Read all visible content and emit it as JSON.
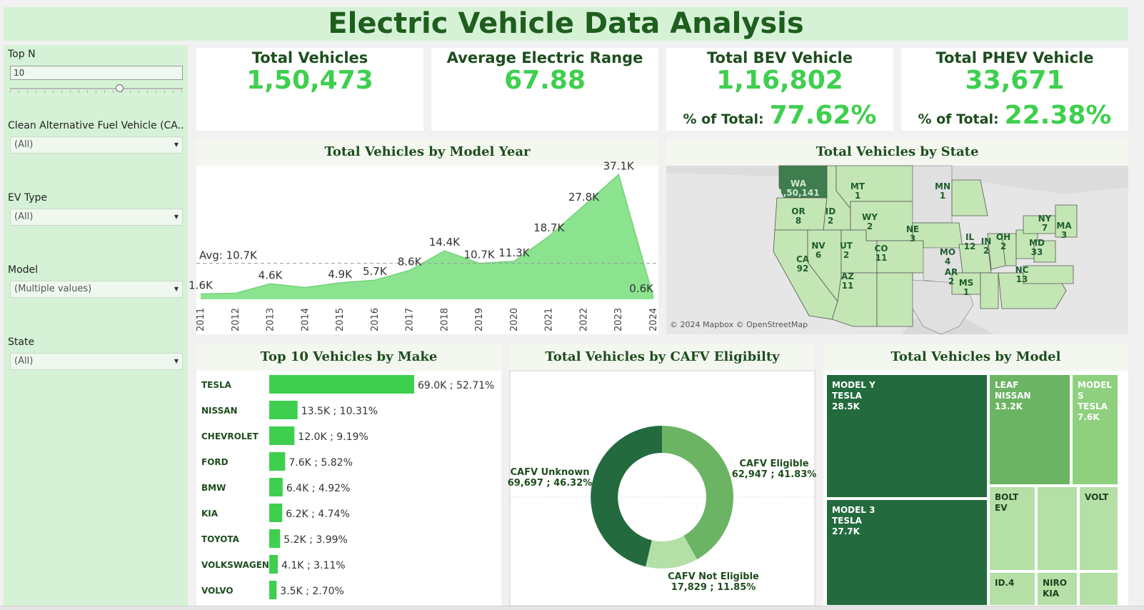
{
  "title": "Electric Vehicle Data Analysis",
  "colors": {
    "accent": "#3fcf4f",
    "dark": "#1e4d1e",
    "dark_green": "#236b3e",
    "mid_green": "#6bb463",
    "light_green": "#b4e0a7"
  },
  "filters": {
    "topn": {
      "label": "Top N",
      "value": "10",
      "level": 0.64
    },
    "cafv": {
      "label": "Clean Alternative Fuel Vehicle (CA..",
      "value": "(All)"
    },
    "evtype": {
      "label": "EV Type",
      "value": "(All)"
    },
    "model": {
      "label": "Model",
      "value": "(Multiple values)"
    },
    "state": {
      "label": "State",
      "value": "(All)"
    }
  },
  "kpis": [
    {
      "title": "Total Vehicles",
      "value": "1,50,473"
    },
    {
      "title": "Average Electric Range",
      "value": "67.88"
    },
    {
      "title": "Total BEV Vehicle",
      "value": "1,16,802",
      "pct_label": "% of Total:",
      "pct": "77.62%"
    },
    {
      "title": "Total PHEV Vehicle",
      "value": "33,671",
      "pct_label": "% of Total:",
      "pct": "22.38%"
    }
  ],
  "year_chart": {
    "title": "Total Vehicles by Model Year",
    "avg_label": "Avg: 10.7K"
  },
  "map": {
    "title": "Total Vehicles by State",
    "attribution": "© 2024 Mapbox © OpenStreetMap",
    "states": [
      {
        "code": "WA",
        "value": "1,50,141"
      },
      {
        "code": "MT",
        "value": "1"
      },
      {
        "code": "MN",
        "value": "1"
      },
      {
        "code": "OR",
        "value": "8"
      },
      {
        "code": "ID",
        "value": "2"
      },
      {
        "code": "WY",
        "value": "2"
      },
      {
        "code": "NE",
        "value": "3"
      },
      {
        "code": "NY",
        "value": "7"
      },
      {
        "code": "MA",
        "value": "3"
      },
      {
        "code": "NV",
        "value": "6"
      },
      {
        "code": "UT",
        "value": "2"
      },
      {
        "code": "CO",
        "value": "11"
      },
      {
        "code": "IL",
        "value": "12"
      },
      {
        "code": "IN",
        "value": "2"
      },
      {
        "code": "OH",
        "value": "2"
      },
      {
        "code": "MD",
        "value": "33"
      },
      {
        "code": "CA",
        "value": "92"
      },
      {
        "code": "MO",
        "value": "4"
      },
      {
        "code": "AZ",
        "value": "11"
      },
      {
        "code": "AR",
        "value": "2"
      },
      {
        "code": "MS",
        "value": "1"
      },
      {
        "code": "NC",
        "value": "13"
      }
    ]
  },
  "make_chart": {
    "title": "Top 10 Vehicles by Make"
  },
  "cafv_chart": {
    "title": "Total Vehicles by CAFV Eligibilty"
  },
  "model_chart": {
    "title": "Total Vehicles by Model",
    "tiles": [
      {
        "name": "MODEL Y",
        "make": "TESLA",
        "value": "28.5K"
      },
      {
        "name": "LEAF",
        "make": "NISSAN",
        "value": "13.2K"
      },
      {
        "name": "MODEL S",
        "make": "TESLA",
        "value": "7.6K"
      },
      {
        "name": "MODEL 3",
        "make": "TESLA",
        "value": "27.7K"
      },
      {
        "name": "BOLT EV",
        "make": "",
        "value": ""
      },
      {
        "name": "VOLT",
        "make": "",
        "value": ""
      },
      {
        "name": "ID.4",
        "make": "",
        "value": ""
      },
      {
        "name": "NIRO",
        "make": "KIA",
        "value": ""
      }
    ]
  },
  "chart_data": [
    {
      "type": "area",
      "title": "Total Vehicles by Model Year",
      "x": [
        "2011",
        "2012",
        "2013",
        "2014",
        "2015",
        "2016",
        "2017",
        "2018",
        "2019",
        "2020",
        "2021",
        "2022",
        "2023",
        "2024"
      ],
      "values": [
        1.6,
        1.8,
        4.6,
        3.5,
        4.9,
        5.7,
        8.6,
        14.4,
        10.7,
        11.3,
        18.7,
        27.8,
        37.1,
        0.6
      ],
      "data_labels": [
        "1.6K",
        "",
        "4.6K",
        "",
        "4.9K",
        "5.7K",
        "8.6K",
        "14.4K",
        "10.7K",
        "11.3K",
        "18.7K",
        "27.8K",
        "37.1K",
        "0.6K"
      ],
      "reference_line": {
        "label": "Avg: 10.7K",
        "value": 10.7
      },
      "ylim": [
        0,
        38
      ],
      "grid": false
    },
    {
      "type": "bar",
      "title": "Top 10 Vehicles by Make",
      "categories": [
        "TESLA",
        "NISSAN",
        "CHEVROLET",
        "FORD",
        "BMW",
        "KIA",
        "TOYOTA",
        "VOLKSWAGEN",
        "VOLVO"
      ],
      "values": [
        69.0,
        13.5,
        12.0,
        7.6,
        6.4,
        6.2,
        5.2,
        4.1,
        3.5
      ],
      "labels": [
        "69.0K ; 52.71%",
        "13.5K ; 10.31%",
        "12.0K ; 9.19%",
        "7.6K ; 5.82%",
        "6.4K ; 4.92%",
        "6.2K ; 4.74%",
        "5.2K ; 3.99%",
        "4.1K ; 3.11%",
        "3.5K ; 2.70%"
      ]
    },
    {
      "type": "pie",
      "title": "Total Vehicles by CAFV Eligibilty",
      "slices": [
        {
          "name": "CAFV Eligible",
          "value": 62947,
          "value_label": "62,947 ; 41.83%",
          "color": "#6bb463"
        },
        {
          "name": "CAFV Not Eligible",
          "value": 17829,
          "value_label": "17,829 ; 11.85%",
          "color": "#b4e0a7"
        },
        {
          "name": "CAFV Unknown",
          "value": 69697,
          "value_label": "69,697 ; 46.32%",
          "color": "#236b3e"
        }
      ]
    }
  ]
}
